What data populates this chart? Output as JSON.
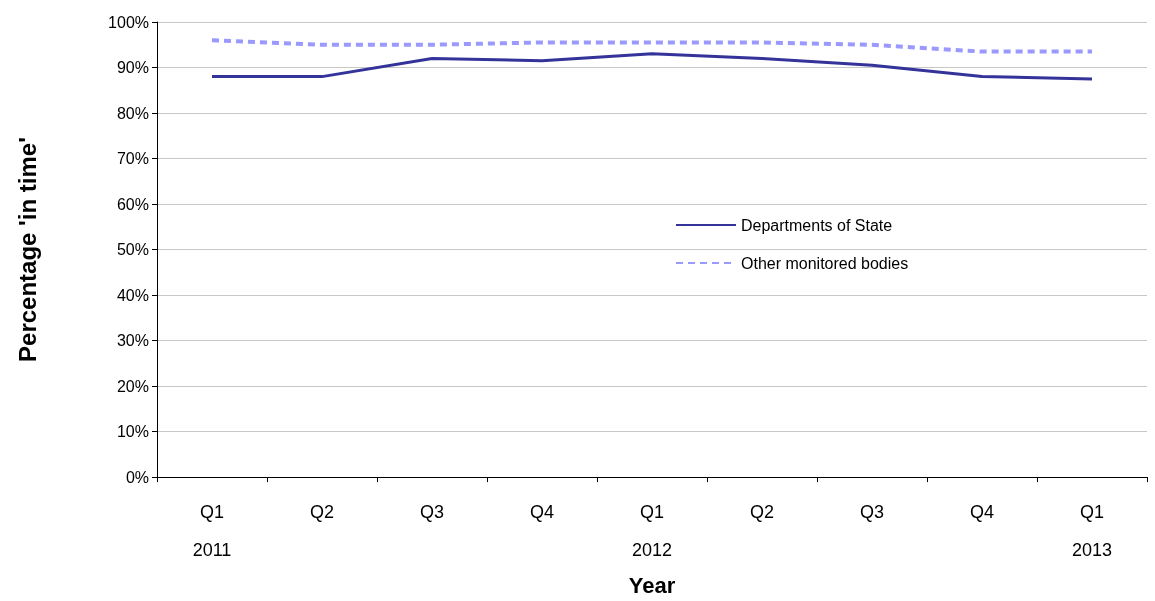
{
  "chart_data": {
    "type": "line",
    "xlabel": "Year",
    "ylabel": "Percentage 'in time'",
    "categories": [
      "Q1\n2011",
      "Q2",
      "Q3",
      "Q4",
      "Q1\n2012",
      "Q2",
      "Q3",
      "Q4",
      "Q1\n2013"
    ],
    "series": [
      {
        "name": "Departments of State",
        "color": "#333399",
        "line_style": "solid",
        "values": [
          88,
          88,
          92,
          91.5,
          93,
          92,
          90.5,
          88,
          87.5
        ]
      },
      {
        "name": "Other monitored bodies",
        "color": "#9999ff",
        "line_style": "dashed",
        "values": [
          96,
          95,
          95,
          95.5,
          95.5,
          95.5,
          95,
          93.5,
          93.5
        ]
      }
    ],
    "ylim": [
      0,
      100
    ],
    "yticks": [
      {
        "value": 0,
        "label": "0%"
      },
      {
        "value": 10,
        "label": "10%"
      },
      {
        "value": 20,
        "label": "20%"
      },
      {
        "value": 30,
        "label": "30%"
      },
      {
        "value": 40,
        "label": "40%"
      },
      {
        "value": 50,
        "label": "50%"
      },
      {
        "value": 60,
        "label": "60%"
      },
      {
        "value": 70,
        "label": "70%"
      },
      {
        "value": 80,
        "label": "80%"
      },
      {
        "value": 90,
        "label": "90%"
      },
      {
        "value": 100,
        "label": "100%"
      }
    ],
    "grid": "y",
    "legend": "center",
    "marker": "none"
  }
}
